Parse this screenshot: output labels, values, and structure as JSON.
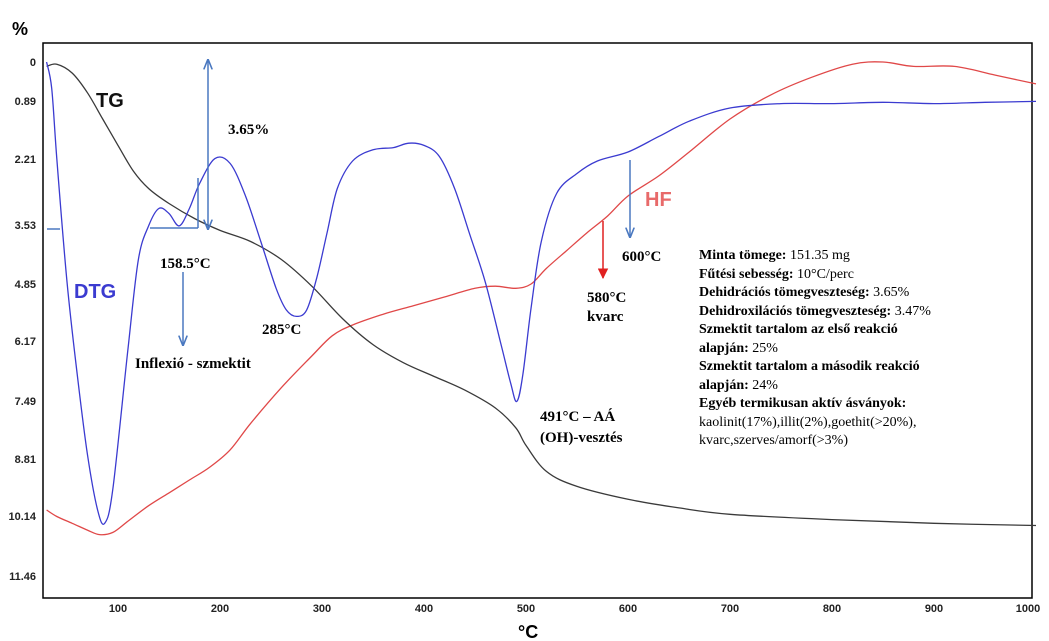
{
  "chart_data": {
    "type": "line",
    "title": "",
    "xlabel": "°C",
    "ylabel": "%",
    "xlim": [
      30,
      1000
    ],
    "x_ticks": [
      "100",
      "200",
      "300",
      "400",
      "500",
      "600",
      "700",
      "800",
      "900",
      "1000"
    ],
    "y_ticks": [
      "0",
      "0.89",
      "2.21",
      "3.53",
      "4.85",
      "6.17",
      "7.49",
      "8.81",
      "10.14",
      "11.46"
    ],
    "y_inverted": true,
    "grid": false,
    "series": [
      {
        "name": "TG",
        "color": "#3a3a3a",
        "x": [
          30,
          40,
          55,
          70,
          85,
          100,
          115,
          130,
          150,
          175,
          200,
          230,
          260,
          290,
          320,
          350,
          380,
          410,
          440,
          470,
          490,
          500,
          520,
          550,
          600,
          650,
          700,
          800,
          900,
          1000
        ],
        "y": [
          0.1,
          0.05,
          0.25,
          0.7,
          1.3,
          1.9,
          2.45,
          2.8,
          3.1,
          3.4,
          3.65,
          3.9,
          4.3,
          4.9,
          5.65,
          6.25,
          6.65,
          6.95,
          7.25,
          7.65,
          8.1,
          8.5,
          9.1,
          9.45,
          9.75,
          9.95,
          10.1,
          10.22,
          10.3,
          10.35
        ]
      },
      {
        "name": "DTG",
        "color": "#3b3bd0",
        "x": [
          30,
          35,
          40,
          50,
          60,
          70,
          80,
          87,
          95,
          110,
          120,
          130,
          140,
          150,
          160,
          170,
          180,
          195,
          210,
          225,
          240,
          255,
          265,
          275,
          285,
          295,
          305,
          315,
          330,
          350,
          370,
          385,
          400,
          415,
          430,
          445,
          460,
          475,
          485,
          491,
          497,
          505,
          515,
          530,
          550,
          570,
          600,
          630,
          660,
          700,
          750,
          800,
          850,
          900,
          950,
          1000
        ],
        "y": [
          0.0,
          0.6,
          2.2,
          4.8,
          6.9,
          8.7,
          10.0,
          10.3,
          9.5,
          6.3,
          4.3,
          3.55,
          3.2,
          3.3,
          3.55,
          3.2,
          2.7,
          2.2,
          2.3,
          2.95,
          3.9,
          4.95,
          5.45,
          5.6,
          5.45,
          4.7,
          3.7,
          2.8,
          2.25,
          2.0,
          1.95,
          1.85,
          1.9,
          2.15,
          2.8,
          3.75,
          4.8,
          6.2,
          7.1,
          7.5,
          6.9,
          5.4,
          3.9,
          2.9,
          2.5,
          2.25,
          2.05,
          1.7,
          1.35,
          1.05,
          0.95,
          0.95,
          0.92,
          0.95,
          0.92,
          0.9
        ]
      },
      {
        "name": "HF",
        "color": "#e04848",
        "x": [
          30,
          40,
          55,
          70,
          82,
          95,
          110,
          130,
          150,
          170,
          190,
          210,
          230,
          260,
          290,
          310,
          330,
          360,
          390,
          420,
          450,
          470,
          490,
          505,
          520,
          540,
          560,
          580,
          600,
          630,
          660,
          700,
          740,
          780,
          820,
          850,
          880,
          920,
          960,
          1000
        ],
        "y": [
          10.0,
          10.15,
          10.3,
          10.45,
          10.55,
          10.5,
          10.25,
          9.9,
          9.6,
          9.3,
          9.0,
          8.6,
          8.0,
          7.2,
          6.5,
          6.05,
          5.8,
          5.55,
          5.35,
          5.15,
          4.95,
          4.9,
          4.95,
          4.85,
          4.5,
          4.1,
          3.7,
          3.35,
          2.95,
          2.55,
          2.05,
          1.3,
          0.75,
          0.35,
          0.05,
          0.0,
          0.1,
          0.1,
          0.3,
          0.5
        ]
      }
    ],
    "labels": {
      "tg": "TG",
      "dtg": "DTG",
      "hf": "HF",
      "pct_365": "3.65%",
      "t_1585": "158.5°C",
      "t_285": "285°C",
      "inflexio": "Inflexió - szmektit",
      "t_600": "600°C",
      "t_580": "580°C",
      "kvarc": "kvarc",
      "t_491_l1": "491°C – AÁ",
      "t_491_l2": "(OH)-vesztés"
    },
    "info": {
      "minta_label": "Minta tömege:",
      "minta_value": "151.35 mg",
      "futesi_label": "Fűtési sebesség:",
      "futesi_value": "10°C/perc",
      "dehidr_label": "Dehidrációs tömegveszteség:",
      "dehidr_value": "3.65%",
      "dehidrox_label": "Dehidroxilációs tömegveszteség:",
      "dehidrox_value": "3.47%",
      "szm1_label_l1": "Szmektit tartalom az első reakció",
      "szm1_label_l2": "alapján:",
      "szm1_value": "25%",
      "szm2_label_l1": "Szmektit tartalom a második reakció",
      "szm2_label_l2": "alapján:",
      "szm2_value": "24%",
      "egyeb_label": "Egyéb termikusan aktív ásványok:",
      "egyeb_l1": "kaolinit(17%),illit(2%),goethit(>20%),",
      "egyeb_l2": "kvarc,szerves/amorf(>3%)"
    }
  }
}
